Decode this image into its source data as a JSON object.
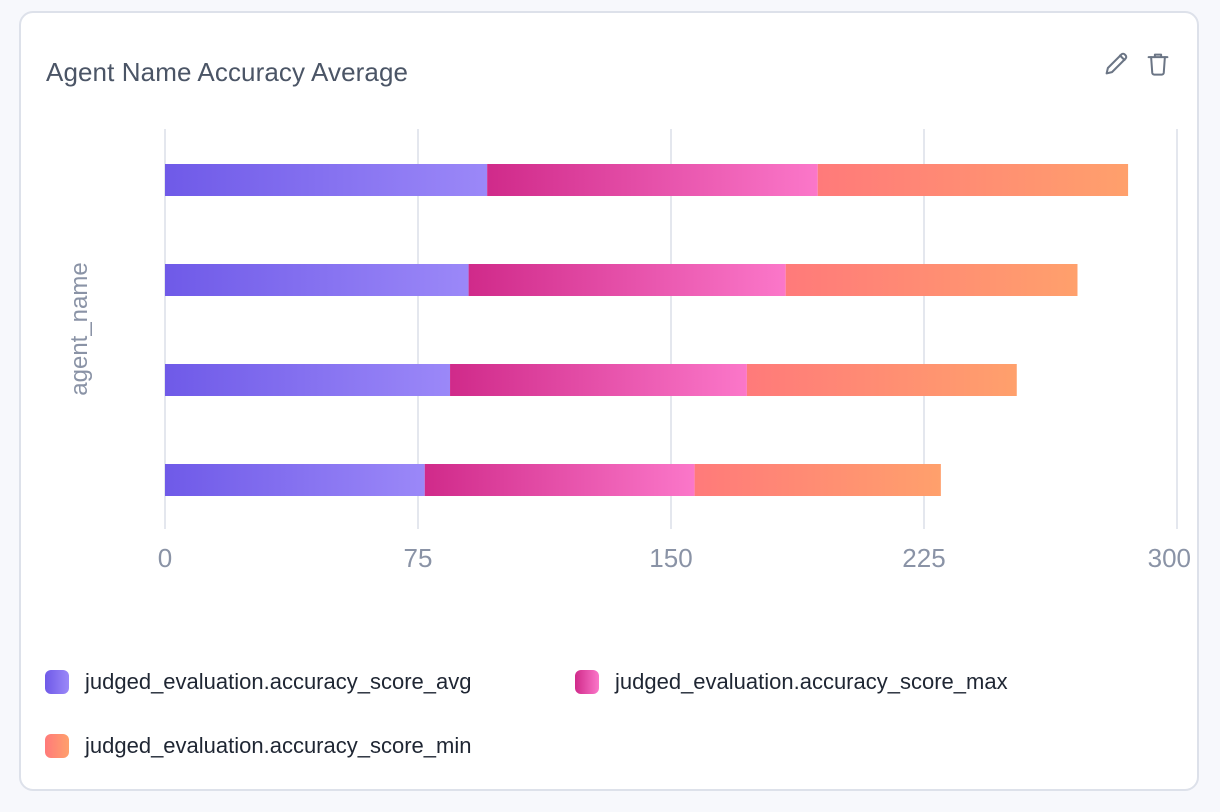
{
  "card": {
    "title": "Agent Name Accuracy Average",
    "edit_icon": "pencil-icon",
    "delete_icon": "trash-icon"
  },
  "chart_data": {
    "type": "bar",
    "orientation": "horizontal",
    "stacked": true,
    "ylabel": "agent_name",
    "xlabel": "",
    "xlim": [
      0,
      300
    ],
    "xticks": [
      0,
      75,
      150,
      225,
      300
    ],
    "categories": [
      "",
      "",
      "",
      ""
    ],
    "series": [
      {
        "name": "judged_evaluation.accuracy_score_avg",
        "values": [
          95.5,
          90,
          84.5,
          77
        ],
        "color_start": "#6f5ae8",
        "color_end": "#9b88f8"
      },
      {
        "name": "judged_evaluation.accuracy_score_max",
        "values": [
          98,
          94,
          88,
          80
        ],
        "color_start": "#d02a8a",
        "color_end": "#fb77c9"
      },
      {
        "name": "judged_evaluation.accuracy_score_min",
        "values": [
          92,
          86.5,
          80,
          73
        ],
        "color_start": "#ff7a7a",
        "color_end": "#ffa06c"
      }
    ],
    "grid": true,
    "legend_position": "bottom-left"
  }
}
